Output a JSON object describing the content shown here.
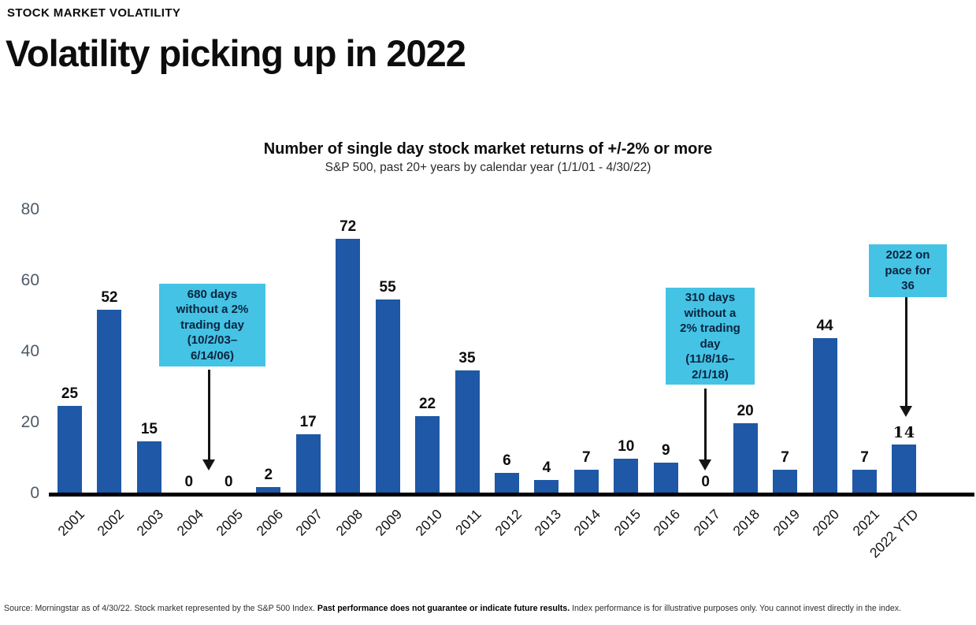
{
  "header": {
    "eyebrow": "STOCK MARKET VOLATILITY",
    "title": "Volatility picking up in 2022"
  },
  "chart_data": {
    "type": "bar",
    "title": "Number of single day stock market returns of +/-2% or more",
    "subtitle": "S&P 500, past 20+ years by calendar year (1/1/01 - 4/30/22)",
    "categories": [
      "2001",
      "2002",
      "2003",
      "2004",
      "2005",
      "2006",
      "2007",
      "2008",
      "2009",
      "2010",
      "2011",
      "2012",
      "2013",
      "2014",
      "2015",
      "2016",
      "2017",
      "2018",
      "2019",
      "2020",
      "2021",
      "2022 YTD"
    ],
    "values": [
      25,
      52,
      15,
      0,
      0,
      2,
      17,
      72,
      55,
      22,
      35,
      6,
      4,
      7,
      10,
      9,
      0,
      20,
      7,
      44,
      7,
      14
    ],
    "ylim": [
      0,
      80
    ],
    "yticks": [
      0,
      20,
      40,
      60,
      80
    ],
    "grid": false,
    "legend": "none",
    "bar_color": "#1e58a6",
    "annotation_bg_color": "#44c3e4",
    "annotations": [
      {
        "lines": [
          "680 days",
          "without a 2%",
          "trading day",
          "(10/2/03–",
          "6/14/06)"
        ],
        "points_to": "gap between 2004 and 2005"
      },
      {
        "lines": [
          "310 days",
          "without a",
          "2% trading",
          "day",
          "(11/8/16–",
          "2/1/18)"
        ],
        "points_to": "2017"
      },
      {
        "lines": [
          "2022 on",
          "pace for",
          "36"
        ],
        "points_to": "2022 YTD"
      }
    ]
  },
  "footer": {
    "part1": "Source: Morningstar as of 4/30/22. Stock market represented by the S&P 500 Index. ",
    "part2": "Past performance does not guarantee or indicate future results.",
    "part3": " Index performance is for illustrative purposes only. You cannot invest directly in the index."
  }
}
